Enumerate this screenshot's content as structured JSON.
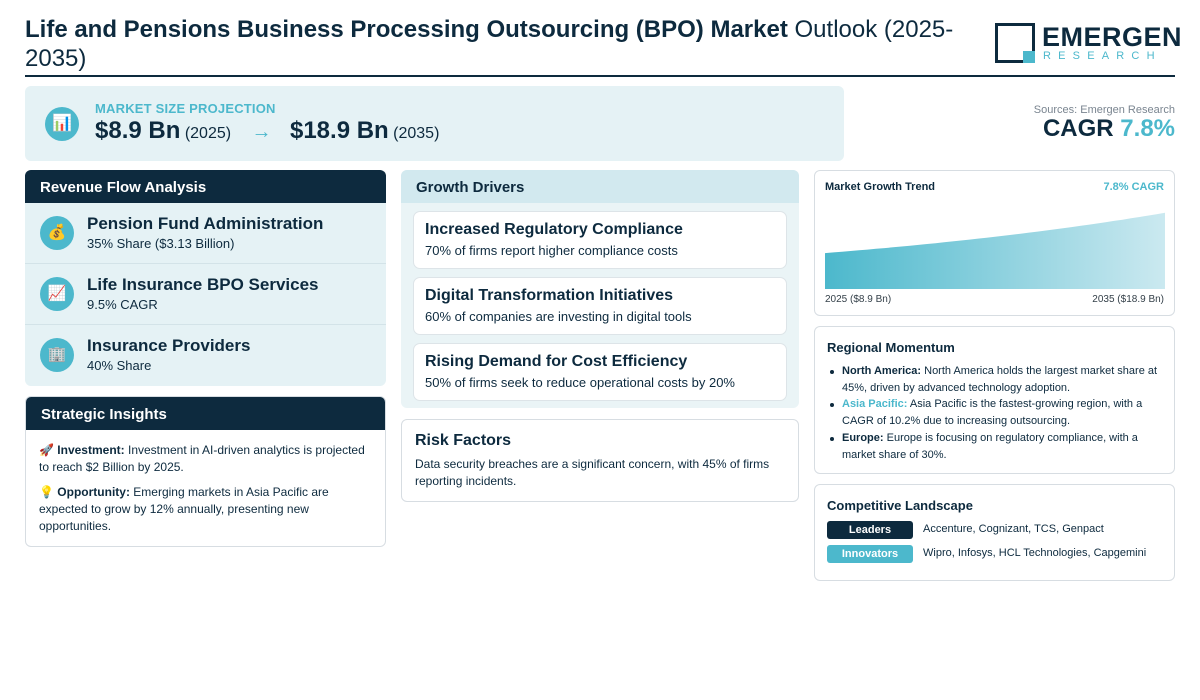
{
  "header": {
    "title_bold": "Life and Pensions Business Processing Outsourcing (BPO) Market",
    "title_light": " Outlook (2025-2035)"
  },
  "logo": {
    "main": "EMERGEN",
    "sub": "RESEARCH"
  },
  "projection": {
    "label": "MARKET SIZE PROJECTION",
    "start_value": "$8.9 Bn",
    "start_year": "(2025)",
    "arrow": "→",
    "end_value": "$18.9 Bn",
    "end_year": "(2035)",
    "icon": "chart-icon"
  },
  "sources": {
    "label": "Sources: Emergen Research",
    "cagr_label": "CAGR",
    "cagr_value": "7.8%"
  },
  "revenue_flow": {
    "title": "Revenue Flow Analysis",
    "items": [
      {
        "icon": "money-bag-icon",
        "glyph": "💰",
        "title": "Pension Fund Administration",
        "subtitle": "35% Share ($3.13 Billion)"
      },
      {
        "icon": "trend-up-icon",
        "glyph": "📈",
        "title": "Life Insurance BPO Services",
        "subtitle": "9.5% CAGR"
      },
      {
        "icon": "building-icon",
        "glyph": "🏢",
        "title": "Insurance Providers",
        "subtitle": "40% Share"
      }
    ]
  },
  "strategic_insights": {
    "title": "Strategic Insights",
    "items": [
      {
        "icon": "rocket-icon",
        "glyph": "🚀",
        "label": "Investment:",
        "text": " Investment in AI-driven analytics is projected to reach $2 Billion by 2025."
      },
      {
        "icon": "lightbulb-icon",
        "glyph": "💡",
        "label": "Opportunity:",
        "text": " Emerging markets in Asia Pacific are expected to grow by 12% annually, presenting new opportunities."
      }
    ]
  },
  "growth_drivers": {
    "title": "Growth Drivers",
    "items": [
      {
        "title": "Increased Regulatory Compliance",
        "subtitle": "70% of firms report higher compliance costs"
      },
      {
        "title": "Digital Transformation Initiatives",
        "subtitle": "60% of companies are investing in digital tools"
      },
      {
        "title": "Rising Demand for Cost Efficiency",
        "subtitle": "50% of firms seek to reduce operational costs by 20%"
      }
    ]
  },
  "risk_factors": {
    "title": "Risk Factors",
    "text": "Data security breaches are a significant concern, with 45% of firms reporting incidents."
  },
  "trend": {
    "title": "Market Growth Trend",
    "cagr": "7.8% CAGR",
    "start_label": "2025 ($8.9 Bn)",
    "end_label": "2035 ($18.9 Bn)"
  },
  "chart_data": {
    "type": "area",
    "x": [
      2025,
      2035
    ],
    "values": [
      8.9,
      18.9
    ],
    "title": "Market Growth Trend",
    "unit": "Bn"
  },
  "regional": {
    "title": "Regional Momentum",
    "items": [
      {
        "region": "North America:",
        "text": " North America holds the largest market share at 45%, driven by advanced technology adoption.",
        "accent": false
      },
      {
        "region": "Asia Pacific:",
        "text": " Asia Pacific is the fastest-growing region, with a CAGR of 10.2% due to increasing outsourcing.",
        "accent": true
      },
      {
        "region": "Europe:",
        "text": " Europe is focusing on regulatory compliance, with a market share of 30%.",
        "accent": false
      }
    ]
  },
  "competitive": {
    "title": "Competitive Landscape",
    "rows": [
      {
        "badge": "Leaders",
        "companies": "Accenture, Cognizant, TCS, Genpact",
        "color": "#0d2a3e"
      },
      {
        "badge": "Innovators",
        "companies": "Wipro, Infosys, HCL Technologies, Capgemini",
        "color": "#4cb8cc"
      }
    ]
  },
  "colors": {
    "navy": "#0d2a3e",
    "accent": "#4cb8cc",
    "panel": "#e5f2f5"
  }
}
